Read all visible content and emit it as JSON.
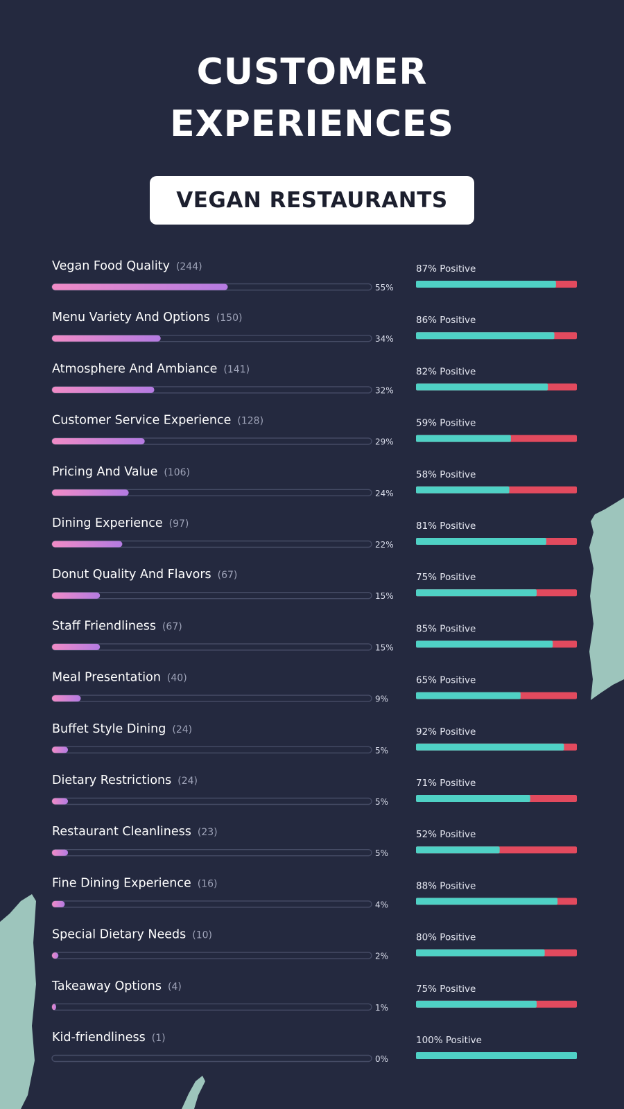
{
  "title_line1": "CUSTOMER",
  "title_line2": "EXPERIENCES",
  "subtitle": "VEGAN RESTAURANTS",
  "colors": {
    "background": "#24293f",
    "share_bar_start": "#f08bc6",
    "share_bar_end": "#b47be2",
    "positive": "#4fd1c5",
    "negative": "#e24a5e",
    "track_outline": "#464c66",
    "brush_accent": "#9dc5bc"
  },
  "chart_data": {
    "type": "bar",
    "share_max": 100,
    "rows": [
      {
        "label": "Vegan Food Quality",
        "count": "(244)",
        "share": 55,
        "share_label": "55%",
        "positive": 87,
        "positive_label": "87% Positive"
      },
      {
        "label": "Menu Variety And Options",
        "count": "(150)",
        "share": 34,
        "share_label": "34%",
        "positive": 86,
        "positive_label": "86% Positive"
      },
      {
        "label": "Atmosphere And Ambiance",
        "count": "(141)",
        "share": 32,
        "share_label": "32%",
        "positive": 82,
        "positive_label": "82% Positive"
      },
      {
        "label": "Customer Service Experience",
        "count": "(128)",
        "share": 29,
        "share_label": "29%",
        "positive": 59,
        "positive_label": "59% Positive"
      },
      {
        "label": "Pricing And Value",
        "count": "(106)",
        "share": 24,
        "share_label": "24%",
        "positive": 58,
        "positive_label": "58% Positive"
      },
      {
        "label": "Dining Experience",
        "count": "(97)",
        "share": 22,
        "share_label": "22%",
        "positive": 81,
        "positive_label": "81% Positive"
      },
      {
        "label": "Donut Quality And Flavors",
        "count": "(67)",
        "share": 15,
        "share_label": "15%",
        "positive": 75,
        "positive_label": "75% Positive"
      },
      {
        "label": "Staff Friendliness",
        "count": "(67)",
        "share": 15,
        "share_label": "15%",
        "positive": 85,
        "positive_label": "85% Positive"
      },
      {
        "label": "Meal Presentation",
        "count": "(40)",
        "share": 9,
        "share_label": "9%",
        "positive": 65,
        "positive_label": "65% Positive"
      },
      {
        "label": "Buffet Style Dining",
        "count": "(24)",
        "share": 5,
        "share_label": "5%",
        "positive": 92,
        "positive_label": "92% Positive"
      },
      {
        "label": "Dietary Restrictions",
        "count": "(24)",
        "share": 5,
        "share_label": "5%",
        "positive": 71,
        "positive_label": "71% Positive"
      },
      {
        "label": "Restaurant Cleanliness",
        "count": "(23)",
        "share": 5,
        "share_label": "5%",
        "positive": 52,
        "positive_label": "52% Positive"
      },
      {
        "label": "Fine Dining Experience",
        "count": "(16)",
        "share": 4,
        "share_label": "4%",
        "positive": 88,
        "positive_label": "88% Positive"
      },
      {
        "label": "Special Dietary Needs",
        "count": "(10)",
        "share": 2,
        "share_label": "2%",
        "positive": 80,
        "positive_label": "80% Positive"
      },
      {
        "label": "Takeaway Options",
        "count": "(4)",
        "share": 1,
        "share_label": "1%",
        "positive": 75,
        "positive_label": "75% Positive"
      },
      {
        "label": "Kid-friendliness",
        "count": "(1)",
        "share": 0,
        "share_label": "0%",
        "positive": 100,
        "positive_label": "100% Positive"
      }
    ]
  }
}
